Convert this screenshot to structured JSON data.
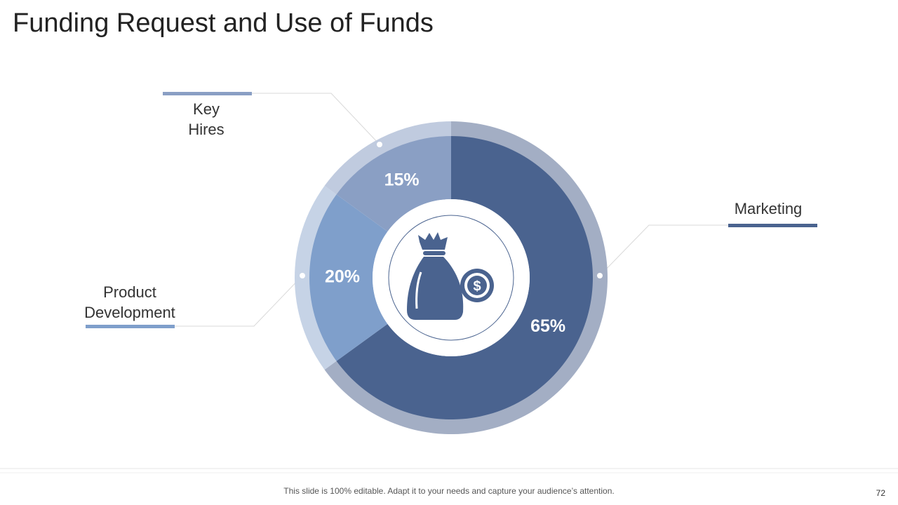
{
  "chart_data": {
    "type": "pie",
    "title": "Funding Request and Use of Funds",
    "categories": [
      "Marketing",
      "Product Development",
      "Key Hires"
    ],
    "values": [
      65,
      20,
      15
    ],
    "value_labels": [
      "65%",
      "20%",
      "15%"
    ],
    "colors": [
      "#4a638f",
      "#7f9fcb",
      "#8a9fc4"
    ],
    "ring_colors": [
      "#a3aec4",
      "#c6d3e6",
      "#c0cbdf"
    ]
  },
  "footer": {
    "note": "This slide is 100% editable. Adapt it to your needs and capture your audience’s attention.",
    "page": 72
  }
}
